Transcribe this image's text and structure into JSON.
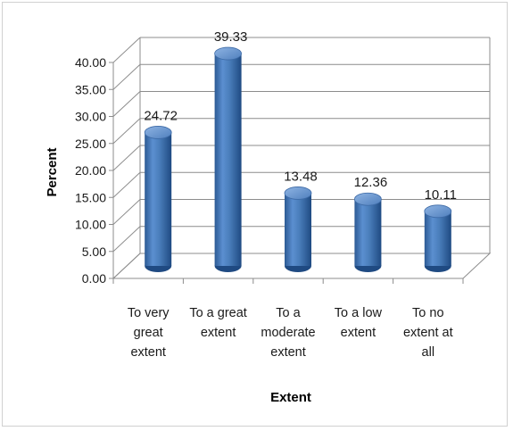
{
  "chart_data": {
    "type": "bar",
    "style": "3d-cylinder",
    "categories": [
      [
        "To very",
        "great",
        "extent"
      ],
      [
        "To a great",
        "extent"
      ],
      [
        "To a",
        "moderate",
        "extent"
      ],
      [
        "To a low",
        "extent"
      ],
      [
        "To no",
        "extent at",
        "all"
      ]
    ],
    "values": [
      24.72,
      39.33,
      13.48,
      12.36,
      10.11
    ],
    "value_labels": [
      "24.72",
      "39.33",
      "13.48",
      "12.36",
      "10.11"
    ],
    "ylim": [
      0,
      40
    ],
    "yticks": [
      "0.00",
      "5.00",
      "10.00",
      "15.00",
      "20.00",
      "25.00",
      "30.00",
      "35.00",
      "40.00"
    ],
    "xlabel": "Extent",
    "ylabel": "Percent",
    "grid": true,
    "legend": "none",
    "colors": {
      "bar": "#4a7ebb",
      "bar_dark": "#1f4a82",
      "bar_light": "#8fb4e3",
      "grid": "#8c8c8c"
    }
  }
}
